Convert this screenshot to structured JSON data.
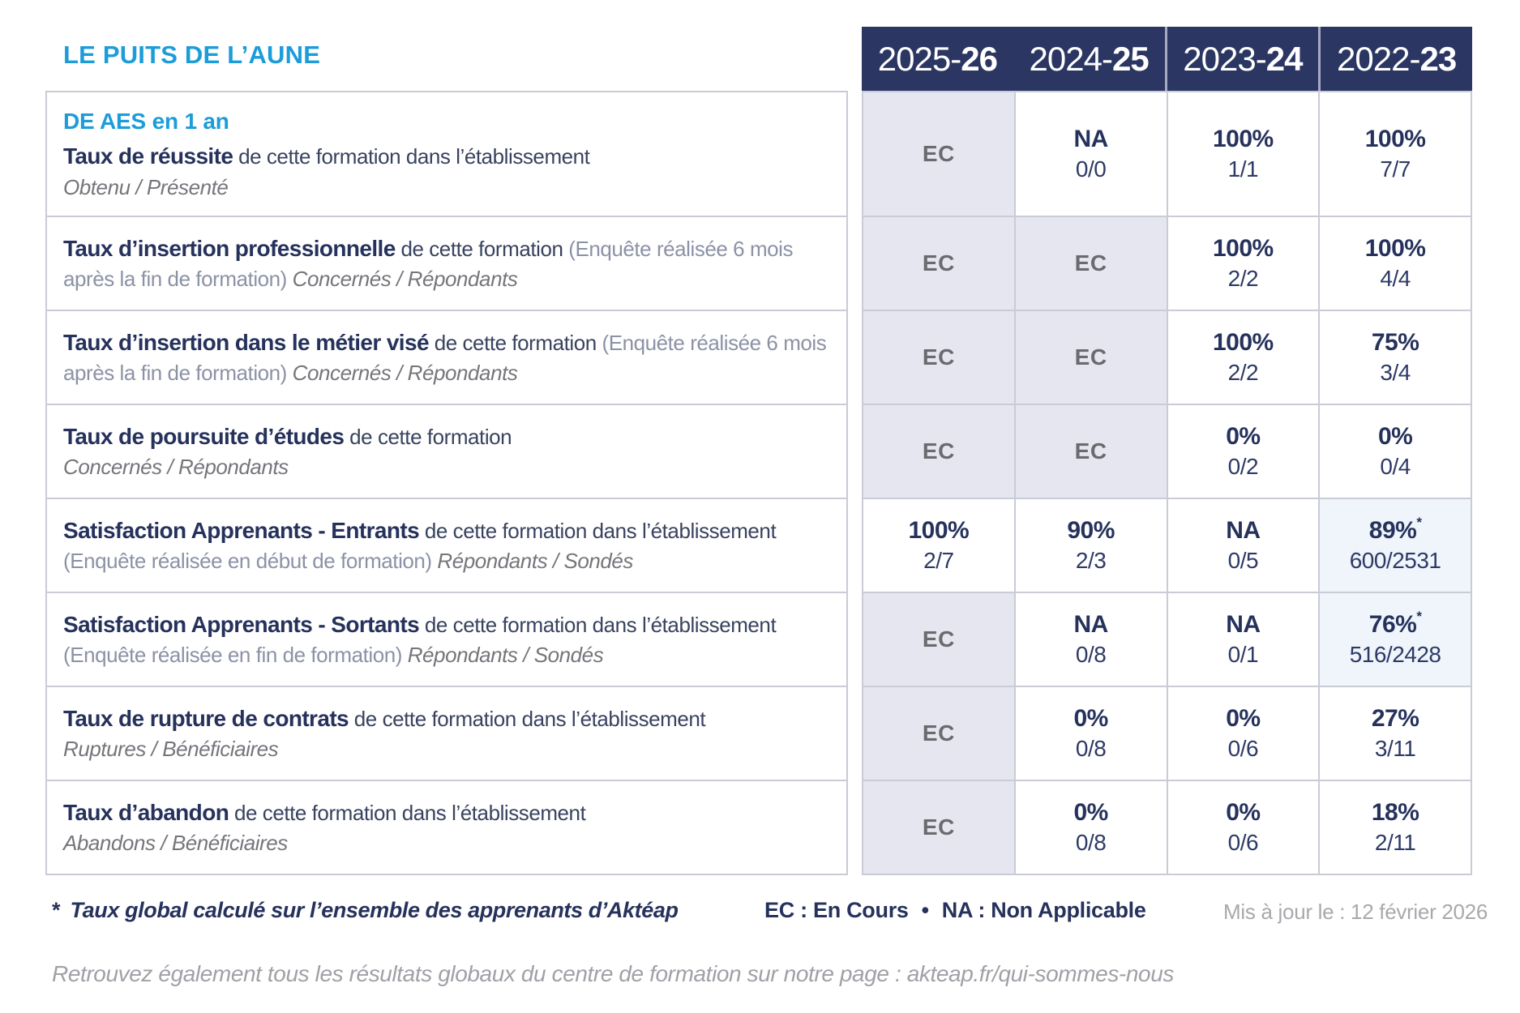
{
  "colors": {
    "accent_blue": "#1C9CD9",
    "navy_text": "#26325C",
    "header_bg": "#2B3663",
    "header_separator": "#A6AAC1",
    "ec_cell_bg": "#E6E6F0",
    "highlight_cell_bg": "#EFF5FB",
    "table_border": "#C9CBD6",
    "ec_text": "#6A6B6F",
    "muted_gray": "#9FA1A6"
  },
  "title": "LE PUITS DE L’AUNE",
  "program": "DE AES en 1 an",
  "columns": [
    {
      "prefix": "2025-",
      "bold": "26"
    },
    {
      "prefix": "2024-",
      "bold": "25"
    },
    {
      "prefix": "2023-",
      "bold": "24"
    },
    {
      "prefix": "2022-",
      "bold": "23"
    }
  ],
  "rows": [
    {
      "name": "taux-de-reussite",
      "segments": [
        {
          "style": "bold",
          "text": "Taux de réussite"
        },
        {
          "style": "normal",
          "text": " de cette formation dans l’établissement"
        },
        {
          "style": "break"
        },
        {
          "style": "italic",
          "text": "Obtenu / Présenté"
        }
      ],
      "cells": [
        {
          "main": "EC",
          "ec": true
        },
        {
          "main": "NA",
          "sub": "0/0"
        },
        {
          "main": "100%",
          "sub": "1/1"
        },
        {
          "main": "100%",
          "sub": "7/7"
        }
      ]
    },
    {
      "name": "taux-insertion-professionnelle",
      "segments": [
        {
          "style": "bold",
          "text": "Taux d’insertion professionnelle"
        },
        {
          "style": "normal",
          "text": " de cette formation "
        },
        {
          "style": "gray",
          "text": "(Enquête réalisée 6 mois après la fin de formation) "
        },
        {
          "style": "italic",
          "text": "Concernés / Répondants"
        }
      ],
      "cells": [
        {
          "main": "EC",
          "ec": true
        },
        {
          "main": "EC",
          "ec": true
        },
        {
          "main": "100%",
          "sub": "2/2"
        },
        {
          "main": "100%",
          "sub": "4/4"
        }
      ]
    },
    {
      "name": "taux-insertion-metier-vise",
      "segments": [
        {
          "style": "bold",
          "text": "Taux d’insertion dans le métier visé"
        },
        {
          "style": "normal",
          "text": " de cette formation "
        },
        {
          "style": "gray",
          "text": "(Enquête réalisée 6 mois après la fin de formation) "
        },
        {
          "style": "italic",
          "text": "Concernés / Répondants"
        }
      ],
      "cells": [
        {
          "main": "EC",
          "ec": true
        },
        {
          "main": "EC",
          "ec": true
        },
        {
          "main": "100%",
          "sub": "2/2"
        },
        {
          "main": "75%",
          "sub": "3/4"
        }
      ]
    },
    {
      "name": "taux-poursuite-etudes",
      "segments": [
        {
          "style": "bold",
          "text": "Taux de poursuite d’études"
        },
        {
          "style": "normal",
          "text": " de cette formation"
        },
        {
          "style": "break"
        },
        {
          "style": "italic",
          "text": "Concernés / Répondants"
        }
      ],
      "cells": [
        {
          "main": "EC",
          "ec": true
        },
        {
          "main": "EC",
          "ec": true
        },
        {
          "main": "0%",
          "sub": "0/2"
        },
        {
          "main": "0%",
          "sub": "0/4"
        }
      ]
    },
    {
      "name": "satisfaction-apprenants-entrants",
      "segments": [
        {
          "style": "bold",
          "text": "Satisfaction Apprenants - Entrants"
        },
        {
          "style": "normal",
          "text": " de cette formation dans l’établissement "
        },
        {
          "style": "gray",
          "text": "(Enquête réalisée en début de formation) "
        },
        {
          "style": "italic",
          "text": "Répondants / Sondés"
        }
      ],
      "cells": [
        {
          "main": "100%",
          "sub": "2/7"
        },
        {
          "main": "90%",
          "sub": "2/3"
        },
        {
          "main": "NA",
          "sub": "0/5"
        },
        {
          "main": "89%",
          "sub": "600/2531",
          "star": true,
          "highlight": true
        }
      ]
    },
    {
      "name": "satisfaction-apprenants-sortants",
      "segments": [
        {
          "style": "bold",
          "text": "Satisfaction Apprenants - Sortants"
        },
        {
          "style": "normal",
          "text": " de cette formation dans l’établissement "
        },
        {
          "style": "gray",
          "text": "(Enquête réalisée en fin de formation) "
        },
        {
          "style": "italic",
          "text": "Répondants / Sondés"
        }
      ],
      "cells": [
        {
          "main": "EC",
          "ec": true
        },
        {
          "main": "NA",
          "sub": "0/8"
        },
        {
          "main": "NA",
          "sub": "0/1"
        },
        {
          "main": "76%",
          "sub": "516/2428",
          "star": true,
          "highlight": true
        }
      ]
    },
    {
      "name": "taux-rupture-contrats",
      "segments": [
        {
          "style": "bold",
          "text": "Taux de rupture de contrats"
        },
        {
          "style": "normal",
          "text": " de cette formation dans l’établissement"
        },
        {
          "style": "break"
        },
        {
          "style": "italic",
          "text": "Ruptures / Bénéficiaires"
        }
      ],
      "cells": [
        {
          "main": "EC",
          "ec": true
        },
        {
          "main": "0%",
          "sub": "0/8"
        },
        {
          "main": "0%",
          "sub": "0/6"
        },
        {
          "main": "27%",
          "sub": "3/11"
        }
      ]
    },
    {
      "name": "taux-abandon",
      "segments": [
        {
          "style": "bold",
          "text": "Taux d’abandon"
        },
        {
          "style": "normal",
          "text": " de cette formation dans l’établissement"
        },
        {
          "style": "break"
        },
        {
          "style": "italic",
          "text": "Abandons / Bénéficiaires"
        }
      ],
      "cells": [
        {
          "main": "EC",
          "ec": true
        },
        {
          "main": "0%",
          "sub": "0/8"
        },
        {
          "main": "0%",
          "sub": "0/6"
        },
        {
          "main": "18%",
          "sub": "2/11"
        }
      ]
    }
  ],
  "footer": {
    "footnote_star": "*",
    "footnote_text": "Taux global calculé sur l’ensemble des apprenants d’Aktéap",
    "legend_ec": "EC : En Cours",
    "legend_bullet": "•",
    "legend_na": "NA : Non Applicable",
    "updated": "Mis à jour le : 12 février 2026",
    "note": "Retrouvez également tous les résultats globaux du centre de formation sur notre page : akteap.fr/qui-sommes-nous"
  }
}
